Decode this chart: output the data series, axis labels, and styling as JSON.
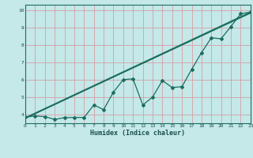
{
  "title": "",
  "xlabel": "Humidex (Indice chaleur)",
  "xlim": [
    0,
    23
  ],
  "ylim": [
    3.5,
    10.3
  ],
  "xticks": [
    0,
    1,
    2,
    3,
    4,
    5,
    6,
    7,
    8,
    9,
    10,
    11,
    12,
    13,
    14,
    15,
    16,
    17,
    18,
    19,
    20,
    21,
    22,
    23
  ],
  "yticks": [
    4,
    5,
    6,
    7,
    8,
    9,
    10
  ],
  "bg_color": "#c5e8e8",
  "grid_color": "#d4a0a8",
  "line_color": "#1a6e60",
  "data_x": [
    0,
    1,
    2,
    3,
    4,
    5,
    6,
    7,
    8,
    9,
    10,
    11,
    12,
    13,
    14,
    15,
    16,
    17,
    18,
    19,
    20,
    21,
    22,
    23
  ],
  "data_y": [
    3.85,
    3.92,
    3.88,
    3.72,
    3.82,
    3.83,
    3.83,
    4.55,
    4.28,
    5.28,
    6.0,
    6.05,
    4.55,
    5.0,
    5.95,
    5.55,
    5.6,
    6.6,
    7.55,
    8.4,
    8.35,
    9.05,
    9.78,
    9.88
  ],
  "trend1_x": [
    0,
    23
  ],
  "trend1_y": [
    3.82,
    9.88
  ],
  "trend2_x": [
    0,
    23
  ],
  "trend2_y": [
    3.78,
    9.84
  ],
  "trend3_x": [
    0,
    23
  ],
  "trend3_y": [
    3.8,
    9.82
  ]
}
